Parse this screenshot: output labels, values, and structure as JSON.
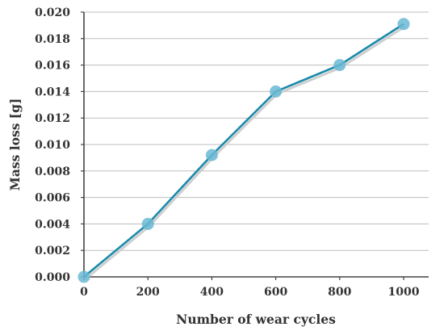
{
  "chart_data": {
    "type": "line",
    "xlabel": "Number of wear cycles",
    "ylabel": "Mass loss [g]",
    "x": [
      0,
      200,
      400,
      600,
      800,
      1000
    ],
    "series": [
      {
        "values": [
          0.0,
          0.004,
          0.0092,
          0.014,
          0.016,
          0.0191
        ]
      }
    ],
    "xlim": [
      0,
      1000
    ],
    "ylim": [
      0,
      0.02
    ],
    "x_ticks": [
      "0",
      "200",
      "400",
      "600",
      "800",
      "1000"
    ],
    "y_ticks": [
      "0.000",
      "0.002",
      "0.004",
      "0.006",
      "0.008",
      "0.010",
      "0.012",
      "0.014",
      "0.016",
      "0.018",
      "0.020"
    ],
    "grid": "horizontal",
    "legend": "none",
    "colors": {
      "line": "#1a8aab",
      "marker": "#6ab9d3",
      "grid": "#bdbdbd",
      "axis": "#444444"
    }
  }
}
